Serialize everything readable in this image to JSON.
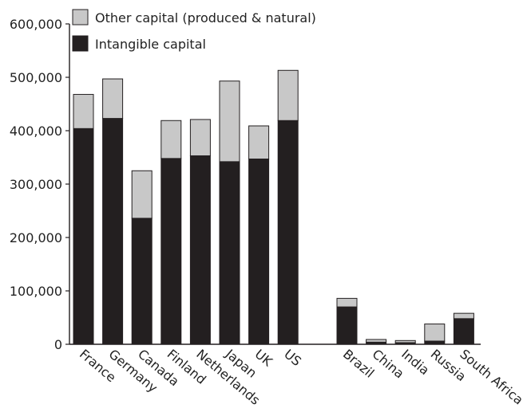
{
  "chart_data": {
    "type": "bar",
    "stacked": true,
    "title": "",
    "xlabel": "",
    "ylabel": "",
    "ylim": [
      0,
      600000
    ],
    "yticks": [
      0,
      100000,
      200000,
      300000,
      400000,
      500000,
      600000
    ],
    "ytick_labels": [
      "0",
      "100,000",
      "200,000",
      "300,000",
      "400,000",
      "500,000",
      "600,000"
    ],
    "grid": false,
    "legend_position": "top-left",
    "categories": [
      "France",
      "Germany",
      "Canada",
      "Finland",
      "Netherlands",
      "Japan",
      "UK",
      "US",
      "Brazil",
      "China",
      "India",
      "Russia",
      "South Africa"
    ],
    "groups": [
      [
        "France",
        "Germany",
        "Canada",
        "Finland",
        "Netherlands",
        "Japan",
        "UK",
        "US"
      ],
      [
        "Brazil",
        "China",
        "India",
        "Russia",
        "South Africa"
      ]
    ],
    "series": [
      {
        "name": "Intangible capital",
        "color": "#231f20",
        "values": [
          404000,
          423000,
          236000,
          348000,
          353000,
          342000,
          347000,
          419000,
          70000,
          4000,
          3000,
          6000,
          48000
        ]
      },
      {
        "name": "Other capital (produced & natural)",
        "color": "#c8c8c8",
        "values": [
          64000,
          74000,
          89000,
          71000,
          68000,
          151000,
          62000,
          94000,
          16000,
          5000,
          4000,
          32000,
          10000
        ]
      }
    ],
    "legend_order": [
      "Other capital (produced & natural)",
      "Intangible capital"
    ]
  }
}
